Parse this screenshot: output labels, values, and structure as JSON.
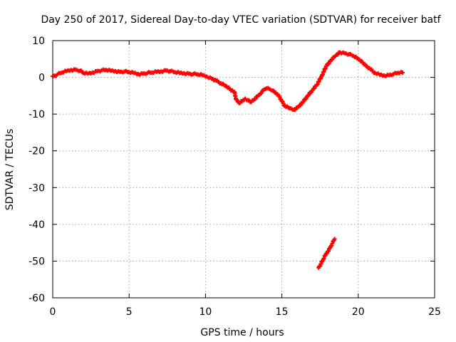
{
  "chart_data": {
    "type": "scatter",
    "title": "Day 250 of 2017, Sidereal Day-to-day VTEC variation (SDTVAR) for receiver batf",
    "xlabel": "GPS time / hours",
    "ylabel": "SDTVAR / TECUs",
    "xlim": [
      0,
      25
    ],
    "ylim": [
      -60,
      10
    ],
    "grid": true,
    "marker": "plus",
    "color": "#ff0000",
    "xticks": [
      0,
      5,
      10,
      15,
      20,
      25
    ],
    "xtick_labels": [
      "0",
      "5",
      "10",
      "15",
      "20",
      "25"
    ],
    "yticks": [
      10,
      0,
      -10,
      -20,
      -30,
      -40,
      -50,
      -60
    ],
    "ytick_labels": [
      "10",
      "0",
      "-10",
      "-20",
      "-30",
      "-40",
      "-50",
      "-60"
    ],
    "series": [
      {
        "name": "SDTVAR main trace",
        "points": [
          [
            0.0,
            0.3
          ],
          [
            0.3,
            0.8
          ],
          [
            0.6,
            1.3
          ],
          [
            0.9,
            1.7
          ],
          [
            1.2,
            2.0
          ],
          [
            1.5,
            2.1
          ],
          [
            1.8,
            1.8
          ],
          [
            2.0,
            1.2
          ],
          [
            2.3,
            1.0
          ],
          [
            2.6,
            1.3
          ],
          [
            2.9,
            1.7
          ],
          [
            3.2,
            1.9
          ],
          [
            3.5,
            2.0
          ],
          [
            3.8,
            1.8
          ],
          [
            4.1,
            1.7
          ],
          [
            4.4,
            1.5
          ],
          [
            4.7,
            1.6
          ],
          [
            5.0,
            1.4
          ],
          [
            5.3,
            1.2
          ],
          [
            5.6,
            0.9
          ],
          [
            5.9,
            1.0
          ],
          [
            6.2,
            1.2
          ],
          [
            6.5,
            1.3
          ],
          [
            6.8,
            1.5
          ],
          [
            7.1,
            1.6
          ],
          [
            7.4,
            1.9
          ],
          [
            7.7,
            1.7
          ],
          [
            8.0,
            1.4
          ],
          [
            8.3,
            1.2
          ],
          [
            8.6,
            1.1
          ],
          [
            8.9,
            1.0
          ],
          [
            9.2,
            0.9
          ],
          [
            9.5,
            0.8
          ],
          [
            9.8,
            0.6
          ],
          [
            10.1,
            0.2
          ],
          [
            10.4,
            -0.3
          ],
          [
            10.7,
            -0.9
          ],
          [
            11.0,
            -1.6
          ],
          [
            11.3,
            -2.3
          ],
          [
            11.6,
            -3.2
          ],
          [
            11.9,
            -4.0
          ],
          [
            12.0,
            -6.0
          ],
          [
            12.2,
            -7.0
          ],
          [
            12.4,
            -6.5
          ],
          [
            12.6,
            -5.8
          ],
          [
            12.8,
            -6.2
          ],
          [
            13.0,
            -6.7
          ],
          [
            13.2,
            -6.0
          ],
          [
            13.4,
            -5.2
          ],
          [
            13.6,
            -4.4
          ],
          [
            13.8,
            -3.4
          ],
          [
            14.0,
            -3.0
          ],
          [
            14.2,
            -3.2
          ],
          [
            14.4,
            -3.6
          ],
          [
            14.6,
            -4.2
          ],
          [
            14.8,
            -5.0
          ],
          [
            15.0,
            -6.5
          ],
          [
            15.2,
            -7.8
          ],
          [
            15.5,
            -8.4
          ],
          [
            15.8,
            -8.8
          ],
          [
            16.1,
            -7.9
          ],
          [
            16.4,
            -6.6
          ],
          [
            16.7,
            -5.0
          ],
          [
            17.0,
            -3.5
          ],
          [
            17.3,
            -2.0
          ],
          [
            17.6,
            0.3
          ],
          [
            17.9,
            3.0
          ],
          [
            18.2,
            4.6
          ],
          [
            18.5,
            5.8
          ],
          [
            18.8,
            6.8
          ],
          [
            19.1,
            6.6
          ],
          [
            19.4,
            6.3
          ],
          [
            19.7,
            5.8
          ],
          [
            20.0,
            5.0
          ],
          [
            20.3,
            4.0
          ],
          [
            20.5,
            3.2
          ],
          [
            20.8,
            2.2
          ],
          [
            21.1,
            1.2
          ],
          [
            21.4,
            0.7
          ],
          [
            21.7,
            0.5
          ],
          [
            22.0,
            0.6
          ],
          [
            22.3,
            0.9
          ],
          [
            22.6,
            1.2
          ],
          [
            22.9,
            1.3
          ]
        ]
      },
      {
        "name": "SDTVAR outlier segment",
        "points": [
          [
            17.4,
            -51.8
          ],
          [
            17.55,
            -50.8
          ],
          [
            17.7,
            -49.6
          ],
          [
            17.85,
            -48.4
          ],
          [
            18.0,
            -47.4
          ],
          [
            18.15,
            -46.4
          ],
          [
            18.3,
            -45.2
          ],
          [
            18.45,
            -44.0
          ]
        ]
      }
    ]
  }
}
